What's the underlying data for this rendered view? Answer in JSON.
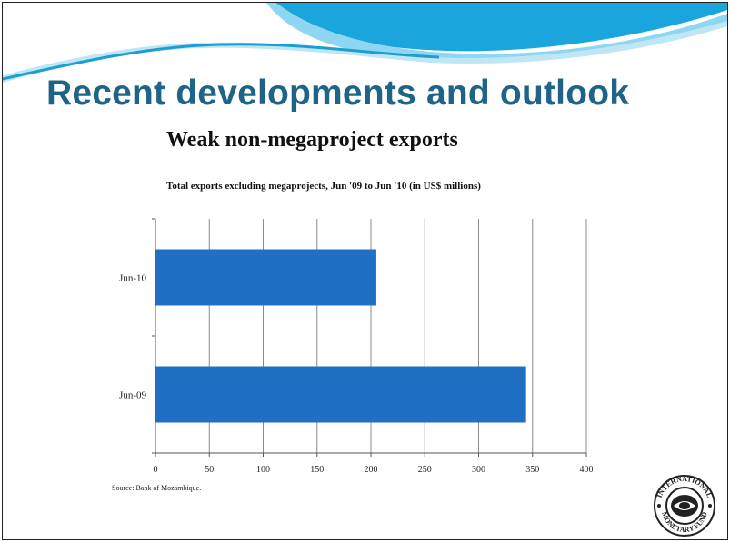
{
  "slide": {
    "title": "Recent developments and outlook",
    "subtitle": "Weak non-megaproject exports",
    "source": "Source: Bank of Mozambique."
  },
  "logo": {
    "icon": "imf-seal-icon",
    "text": "INTERNATIONAL MONETARY FUND"
  },
  "colors": {
    "title": "#1e6487",
    "bar": "#1f6fc5",
    "banner": "#29b5e8"
  },
  "chart_data": {
    "type": "bar",
    "orientation": "horizontal",
    "title": "Total exports excluding megaprojects, Jun '09 to Jun '10 (in US$ millions)",
    "categories": [
      "Jun-10",
      "Jun-09"
    ],
    "values": [
      205,
      344
    ],
    "xlabel": "",
    "ylabel": "",
    "xlim": [
      0,
      400
    ],
    "xticks": [
      0,
      50,
      100,
      150,
      200,
      250,
      300,
      350,
      400
    ],
    "xtick_labels": [
      "0",
      "50",
      "100",
      "150",
      "200",
      "250",
      "300",
      "350",
      "400"
    ],
    "grid": "vertical",
    "legend": "none"
  }
}
